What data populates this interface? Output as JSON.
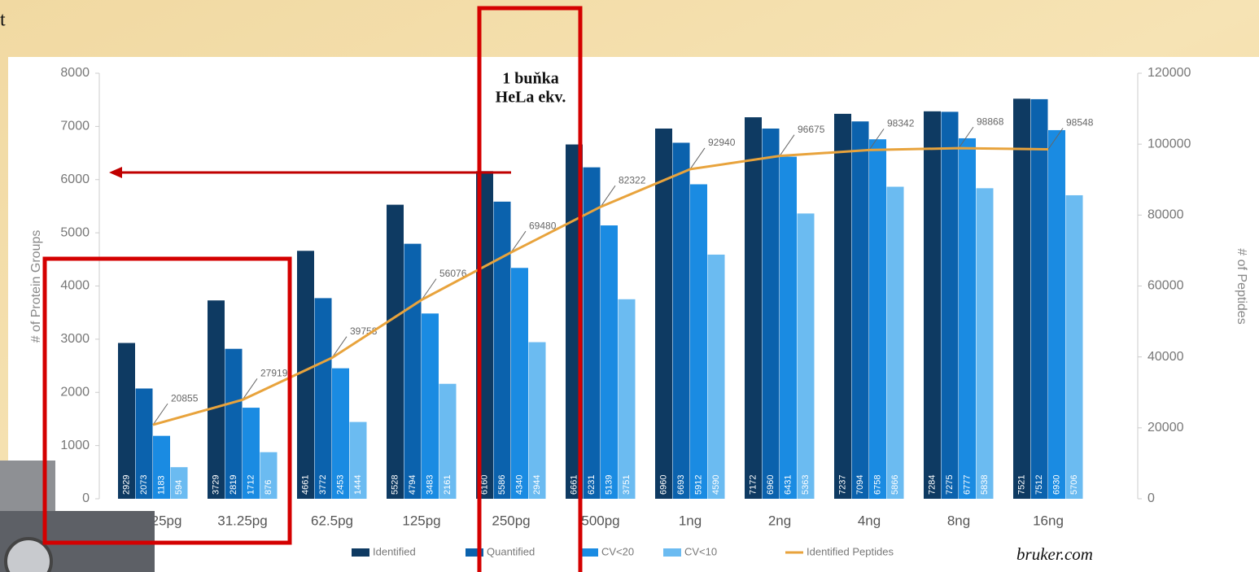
{
  "slide_text": "t",
  "chart_data": {
    "type": "bar",
    "categories": [
      "15.125pg",
      "31.25pg",
      "62.5pg",
      "125pg",
      "250pg",
      "500pg",
      "1ng",
      "2ng",
      "4ng",
      "8ng",
      "16ng"
    ],
    "series": [
      {
        "name": "Identified",
        "color": "#0e3a62",
        "values": [
          2929,
          3729,
          4661,
          5528,
          6160,
          6661,
          6960,
          7172,
          7237,
          7284,
          7521
        ]
      },
      {
        "name": "Quantified",
        "color": "#0b62ad",
        "values": [
          2073,
          2819,
          3772,
          4794,
          5586,
          6231,
          6693,
          6960,
          7094,
          7275,
          7512
        ]
      },
      {
        "name": "CV<20",
        "color": "#1a8be2",
        "values": [
          1183,
          1712,
          2453,
          3483,
          4340,
          5139,
          5912,
          6431,
          6758,
          6777,
          6930
        ]
      },
      {
        "name": "CV<10",
        "color": "#6bbbf1",
        "values": [
          594,
          876,
          1444,
          2161,
          2944,
          3751,
          4590,
          5363,
          5866,
          5838,
          5706
        ]
      },
      {
        "name": "Identified Peptides",
        "type": "line",
        "axis": "y2",
        "color": "#e8a33c",
        "values": [
          20855,
          27919,
          39758,
          56076,
          69480,
          82322,
          92940,
          96675,
          98342,
          98868,
          98548
        ]
      }
    ],
    "ylim": [
      0,
      8000
    ],
    "yticks": [
      0,
      1000,
      2000,
      3000,
      4000,
      5000,
      6000,
      7000,
      8000
    ],
    "y2lim": [
      0,
      120000
    ],
    "y2ticks": [
      0,
      20000,
      40000,
      60000,
      80000,
      100000,
      120000
    ],
    "y_label": "# of Protein Groups",
    "y2_label": "# of Peptides",
    "annotations": [
      "1 buňka",
      "HeLa ekv.",
      "bruker.com"
    ]
  }
}
